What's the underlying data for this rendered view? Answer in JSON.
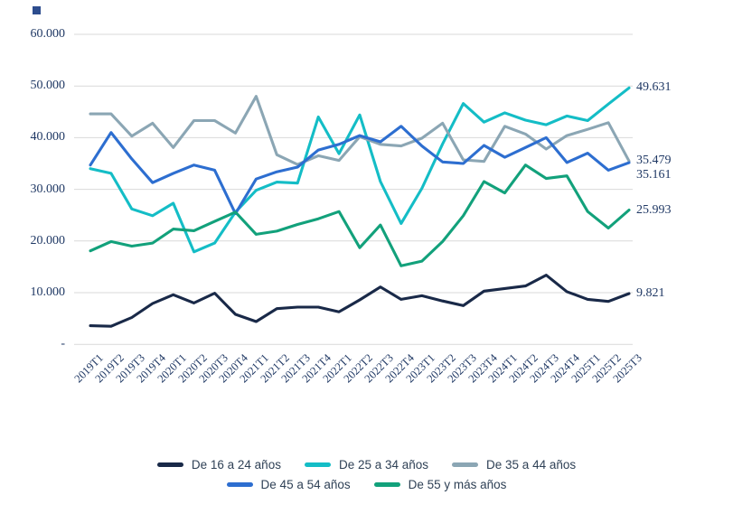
{
  "chart_data": {
    "type": "line",
    "x": [
      "2019T1",
      "2019T2",
      "2019T3",
      "2019T4",
      "2020T1",
      "2020T2",
      "2020T3",
      "2020T4",
      "2021T1",
      "2021T2",
      "2021T3",
      "2021T4",
      "2022T1",
      "2022T2",
      "2022T3",
      "2022T4",
      "2023T1",
      "2023T2",
      "2023T3",
      "2023T4",
      "2024T1",
      "2024T2",
      "2024T3",
      "2024T4",
      "2025T1",
      "2025T2",
      "2025T3"
    ],
    "series": [
      {
        "name": "De 16 a 24 años",
        "color": "#192948",
        "end_label": "9.821",
        "values": [
          3600,
          3500,
          5200,
          7900,
          9600,
          8000,
          9900,
          5800,
          4400,
          6900,
          7200,
          7200,
          6300,
          8600,
          11100,
          8700,
          9400,
          8400,
          7500,
          10300,
          10800,
          11300,
          13400,
          10200,
          8700,
          8300,
          9821
        ]
      },
      {
        "name": "De 25 a 34 años",
        "color": "#14bdc6",
        "end_label": "49.631",
        "values": [
          34000,
          33100,
          26200,
          24900,
          27300,
          17900,
          19600,
          25600,
          29800,
          31400,
          31200,
          44000,
          36900,
          44400,
          31500,
          23400,
          30200,
          38800,
          46600,
          43000,
          44800,
          43400,
          42500,
          44200,
          43300,
          46500,
          49631
        ]
      },
      {
        "name": "De 35 a 44 años",
        "color": "#8ba6b4",
        "end_label": "35.479",
        "values": [
          44600,
          44600,
          40300,
          42800,
          38100,
          43300,
          43300,
          40900,
          48000,
          36700,
          34800,
          36500,
          35600,
          40200,
          38700,
          38400,
          39900,
          42800,
          35700,
          35400,
          42200,
          40700,
          37800,
          40400,
          41600,
          42900,
          35479
        ]
      },
      {
        "name": "De 45 a 54 años",
        "color": "#2d6ed0",
        "end_label": "35.161",
        "values": [
          34700,
          41000,
          35900,
          31300,
          33100,
          34700,
          33700,
          25300,
          32000,
          33400,
          34300,
          37600,
          38700,
          40400,
          39200,
          42200,
          38400,
          35300,
          35000,
          38500,
          36200,
          38100,
          40000,
          35200,
          37000,
          33700,
          35161
        ]
      },
      {
        "name": "De 55 y más años",
        "color": "#12a17b",
        "end_label": "25.993",
        "values": [
          18100,
          19900,
          19000,
          19600,
          22300,
          22000,
          23800,
          25600,
          21300,
          21900,
          23200,
          24300,
          25700,
          18700,
          23100,
          15200,
          16100,
          19900,
          24900,
          31500,
          29300,
          34700,
          32100,
          32600,
          25700,
          22500,
          25993
        ]
      }
    ],
    "y_ticks": [
      {
        "value": 60000,
        "label": "60.000"
      },
      {
        "value": 50000,
        "label": "50.000"
      },
      {
        "value": 40000,
        "label": "40.000"
      },
      {
        "value": 30000,
        "label": "30.000"
      },
      {
        "value": 20000,
        "label": "20.000"
      },
      {
        "value": 10000,
        "label": "10.000"
      },
      {
        "value": 0,
        "label": "-"
      }
    ],
    "ylim": [
      0,
      60000
    ],
    "grid": "horizontal",
    "legend_position": "bottom",
    "title": "",
    "xlabel": "",
    "ylabel": ""
  },
  "colors": {
    "tick_text": "#1f3864",
    "gridline": "#d9d9d9",
    "legend_text": "#2f4156"
  }
}
